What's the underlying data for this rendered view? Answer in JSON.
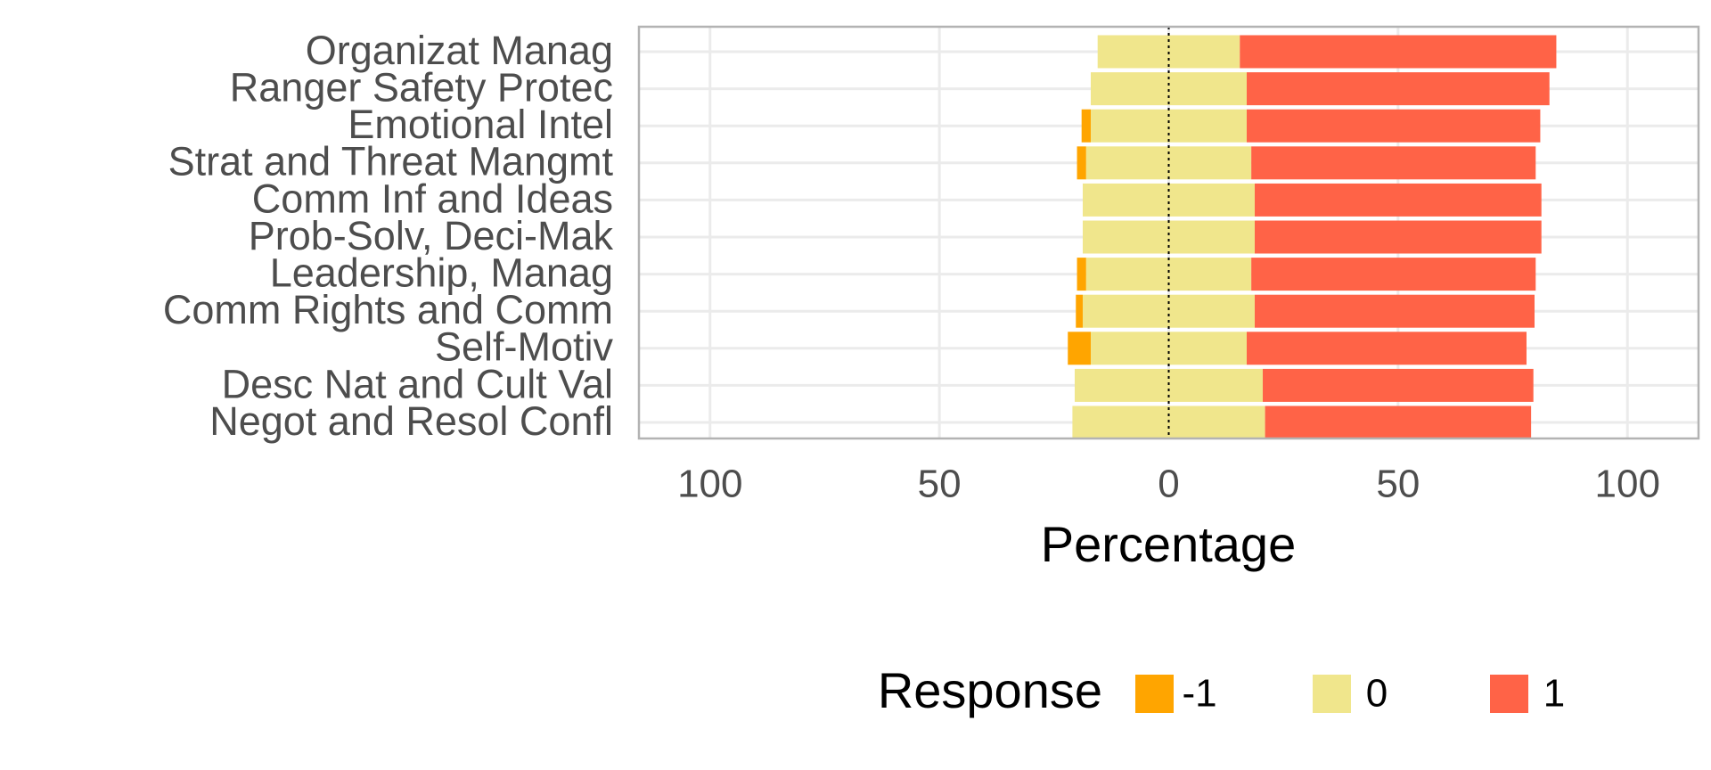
{
  "chart_data": {
    "type": "diverging-bar",
    "categories": [
      "Organizat Manag",
      "Ranger Safety Protec",
      "Emotional Intel",
      "Strat and Threat Mangmt",
      "Comm Inf and Ideas",
      "Prob-Solv, Deci-Mak",
      "Leadership, Manag",
      "Comm Rights and Comm",
      "Self-Motiv",
      "Desc Nat and Cult Val",
      "Negot and Resol Confl"
    ],
    "series": [
      {
        "name": "-1",
        "color": "#ffa500",
        "values": [
          0,
          0,
          2,
          2,
          0,
          0,
          2,
          1.5,
          5,
          0,
          0
        ]
      },
      {
        "name": "0",
        "color": "#f0e68c",
        "values": [
          31,
          34,
          34,
          36,
          37.5,
          37.5,
          36,
          37.5,
          34,
          41,
          42
        ]
      },
      {
        "name": "1",
        "color": "#ff6347",
        "values": [
          69,
          66,
          64,
          62,
          62.5,
          62.5,
          62,
          61,
          61,
          59,
          58
        ]
      }
    ],
    "xlabel": "Percentage",
    "legend_title": "Response",
    "xlim": [
      -115.5,
      115.5
    ],
    "xticks": [
      {
        "value": -100,
        "label": "100"
      },
      {
        "value": -50,
        "label": "50"
      },
      0,
      50,
      100
    ],
    "grid": true
  }
}
